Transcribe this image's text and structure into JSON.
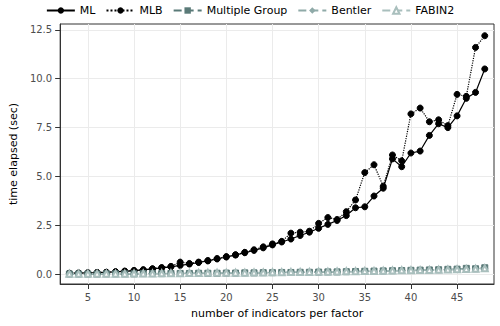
{
  "chart_data": {
    "type": "line",
    "x_label": "number of indicators per factor",
    "y_label": "time elapsed (sec)",
    "x": [
      3,
      4,
      5,
      6,
      7,
      8,
      9,
      10,
      11,
      12,
      13,
      14,
      15,
      16,
      17,
      18,
      19,
      20,
      21,
      22,
      23,
      24,
      25,
      26,
      27,
      28,
      29,
      30,
      31,
      32,
      33,
      34,
      35,
      36,
      37,
      38,
      39,
      40,
      41,
      42,
      43,
      44,
      45,
      46,
      47,
      48
    ],
    "series": [
      {
        "name": "ML",
        "color": "#000000",
        "marker": "circle",
        "line_style": "solid",
        "values": [
          0.05,
          0.06,
          0.07,
          0.08,
          0.1,
          0.12,
          0.15,
          0.18,
          0.22,
          0.27,
          0.32,
          0.38,
          0.45,
          0.52,
          0.6,
          0.68,
          0.78,
          0.88,
          0.98,
          1.1,
          1.22,
          1.35,
          1.5,
          1.65,
          1.8,
          1.98,
          2.15,
          2.35,
          2.55,
          2.75,
          3.0,
          3.4,
          3.45,
          4.0,
          4.4,
          5.9,
          5.5,
          6.2,
          6.3,
          7.1,
          7.7,
          7.5,
          8.1,
          9.0,
          9.3,
          10.5
        ]
      },
      {
        "name": "MLB",
        "color": "#000000",
        "marker": "circle",
        "line_style": "dotted",
        "values": [
          0.05,
          0.06,
          0.07,
          0.09,
          0.1,
          0.13,
          0.16,
          0.19,
          0.23,
          0.28,
          0.34,
          0.4,
          0.62,
          0.55,
          0.62,
          0.7,
          0.8,
          0.9,
          1.0,
          1.12,
          1.25,
          1.4,
          1.55,
          1.68,
          2.1,
          2.15,
          2.2,
          2.6,
          2.9,
          2.8,
          3.2,
          3.8,
          5.2,
          5.6,
          4.5,
          6.1,
          5.8,
          8.2,
          8.5,
          7.8,
          7.9,
          7.6,
          9.2,
          9.1,
          11.6,
          12.2
        ]
      },
      {
        "name": "Multiple Group",
        "color": "#5a7a78",
        "marker": "square",
        "line_style": "dashed",
        "values": [
          0.01,
          0.01,
          0.01,
          0.01,
          0.02,
          0.02,
          0.02,
          0.02,
          0.03,
          0.03,
          0.03,
          0.04,
          0.04,
          0.04,
          0.05,
          0.05,
          0.05,
          0.06,
          0.06,
          0.07,
          0.07,
          0.08,
          0.08,
          0.09,
          0.09,
          0.1,
          0.1,
          0.11,
          0.12,
          0.12,
          0.13,
          0.14,
          0.15,
          0.16,
          0.17,
          0.18,
          0.19,
          0.2,
          0.21,
          0.22,
          0.23,
          0.25,
          0.26,
          0.3,
          0.28,
          0.33
        ]
      },
      {
        "name": "Bentler",
        "color": "#8faaa8",
        "marker": "diamond",
        "line_style": "dashed",
        "values": [
          0.01,
          0.01,
          0.01,
          0.01,
          0.01,
          0.02,
          0.02,
          0.02,
          0.02,
          0.03,
          0.03,
          0.03,
          0.04,
          0.04,
          0.04,
          0.05,
          0.05,
          0.05,
          0.06,
          0.06,
          0.07,
          0.07,
          0.08,
          0.08,
          0.09,
          0.09,
          0.1,
          0.1,
          0.11,
          0.11,
          0.12,
          0.13,
          0.14,
          0.15,
          0.16,
          0.17,
          0.17,
          0.18,
          0.19,
          0.2,
          0.21,
          0.22,
          0.24,
          0.25,
          0.27,
          0.29
        ]
      },
      {
        "name": "FABIN2",
        "color": "#a9bfbd",
        "marker": "triangle-open",
        "line_style": "dashed",
        "values": [
          0.02,
          0.02,
          0.02,
          0.03,
          0.03,
          0.03,
          0.03,
          0.04,
          0.04,
          0.04,
          0.05,
          0.05,
          0.05,
          0.06,
          0.06,
          0.07,
          0.07,
          0.07,
          0.08,
          0.08,
          0.09,
          0.09,
          0.1,
          0.1,
          0.11,
          0.12,
          0.12,
          0.13,
          0.13,
          0.14,
          0.15,
          0.15,
          0.16,
          0.17,
          0.18,
          0.19,
          0.2,
          0.2,
          0.21,
          0.22,
          0.23,
          0.24,
          0.25,
          0.27,
          0.28,
          0.3
        ]
      }
    ],
    "xlim": [
      2,
      49
    ],
    "xticks": [
      5,
      10,
      15,
      20,
      25,
      30,
      35,
      40,
      45
    ],
    "ylim": [
      -0.5,
      12.8
    ],
    "yticks": [
      {
        "value": 0,
        "label": "0.0"
      },
      2.5,
      {
        "value": 5,
        "label": "5.0"
      },
      7.5,
      {
        "value": 10,
        "label": "10.0"
      },
      12.5
    ],
    "grid": true,
    "legend": "top"
  }
}
